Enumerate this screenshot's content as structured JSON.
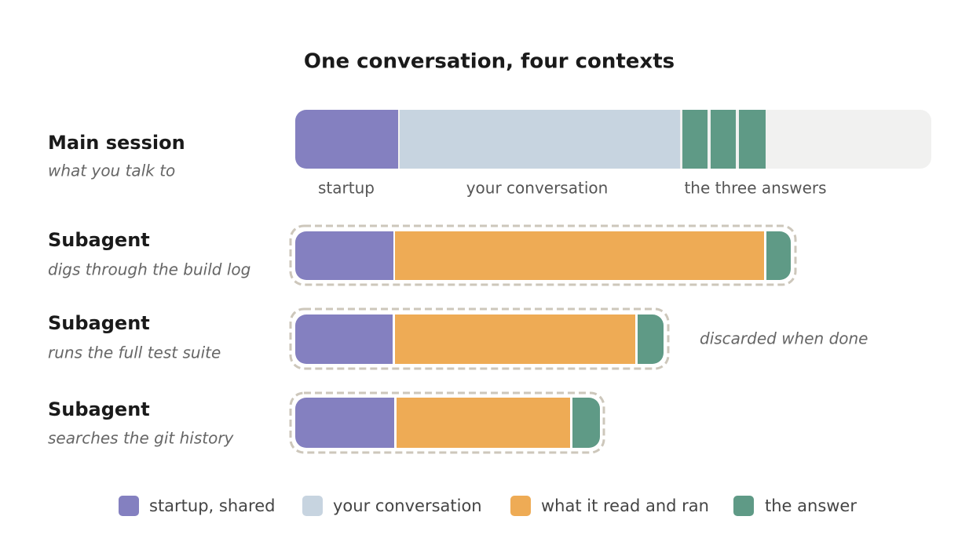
{
  "header": {
    "title": "One conversation, four contexts"
  },
  "rows": [
    {
      "label": "Main session",
      "sublabel": "what you talk to"
    },
    {
      "label": "Subagent",
      "sublabel": "digs through the build log"
    },
    {
      "label": "Subagent",
      "sublabel": "runs the full test suite"
    },
    {
      "label": "Subagent",
      "sublabel": "searches the git history"
    }
  ],
  "main_segments": [
    "startup",
    "your conversation",
    "the three answers"
  ],
  "note": "discarded when done",
  "legend": [
    "startup, shared",
    "your conversation",
    "what it read and ran",
    "the answer"
  ]
}
